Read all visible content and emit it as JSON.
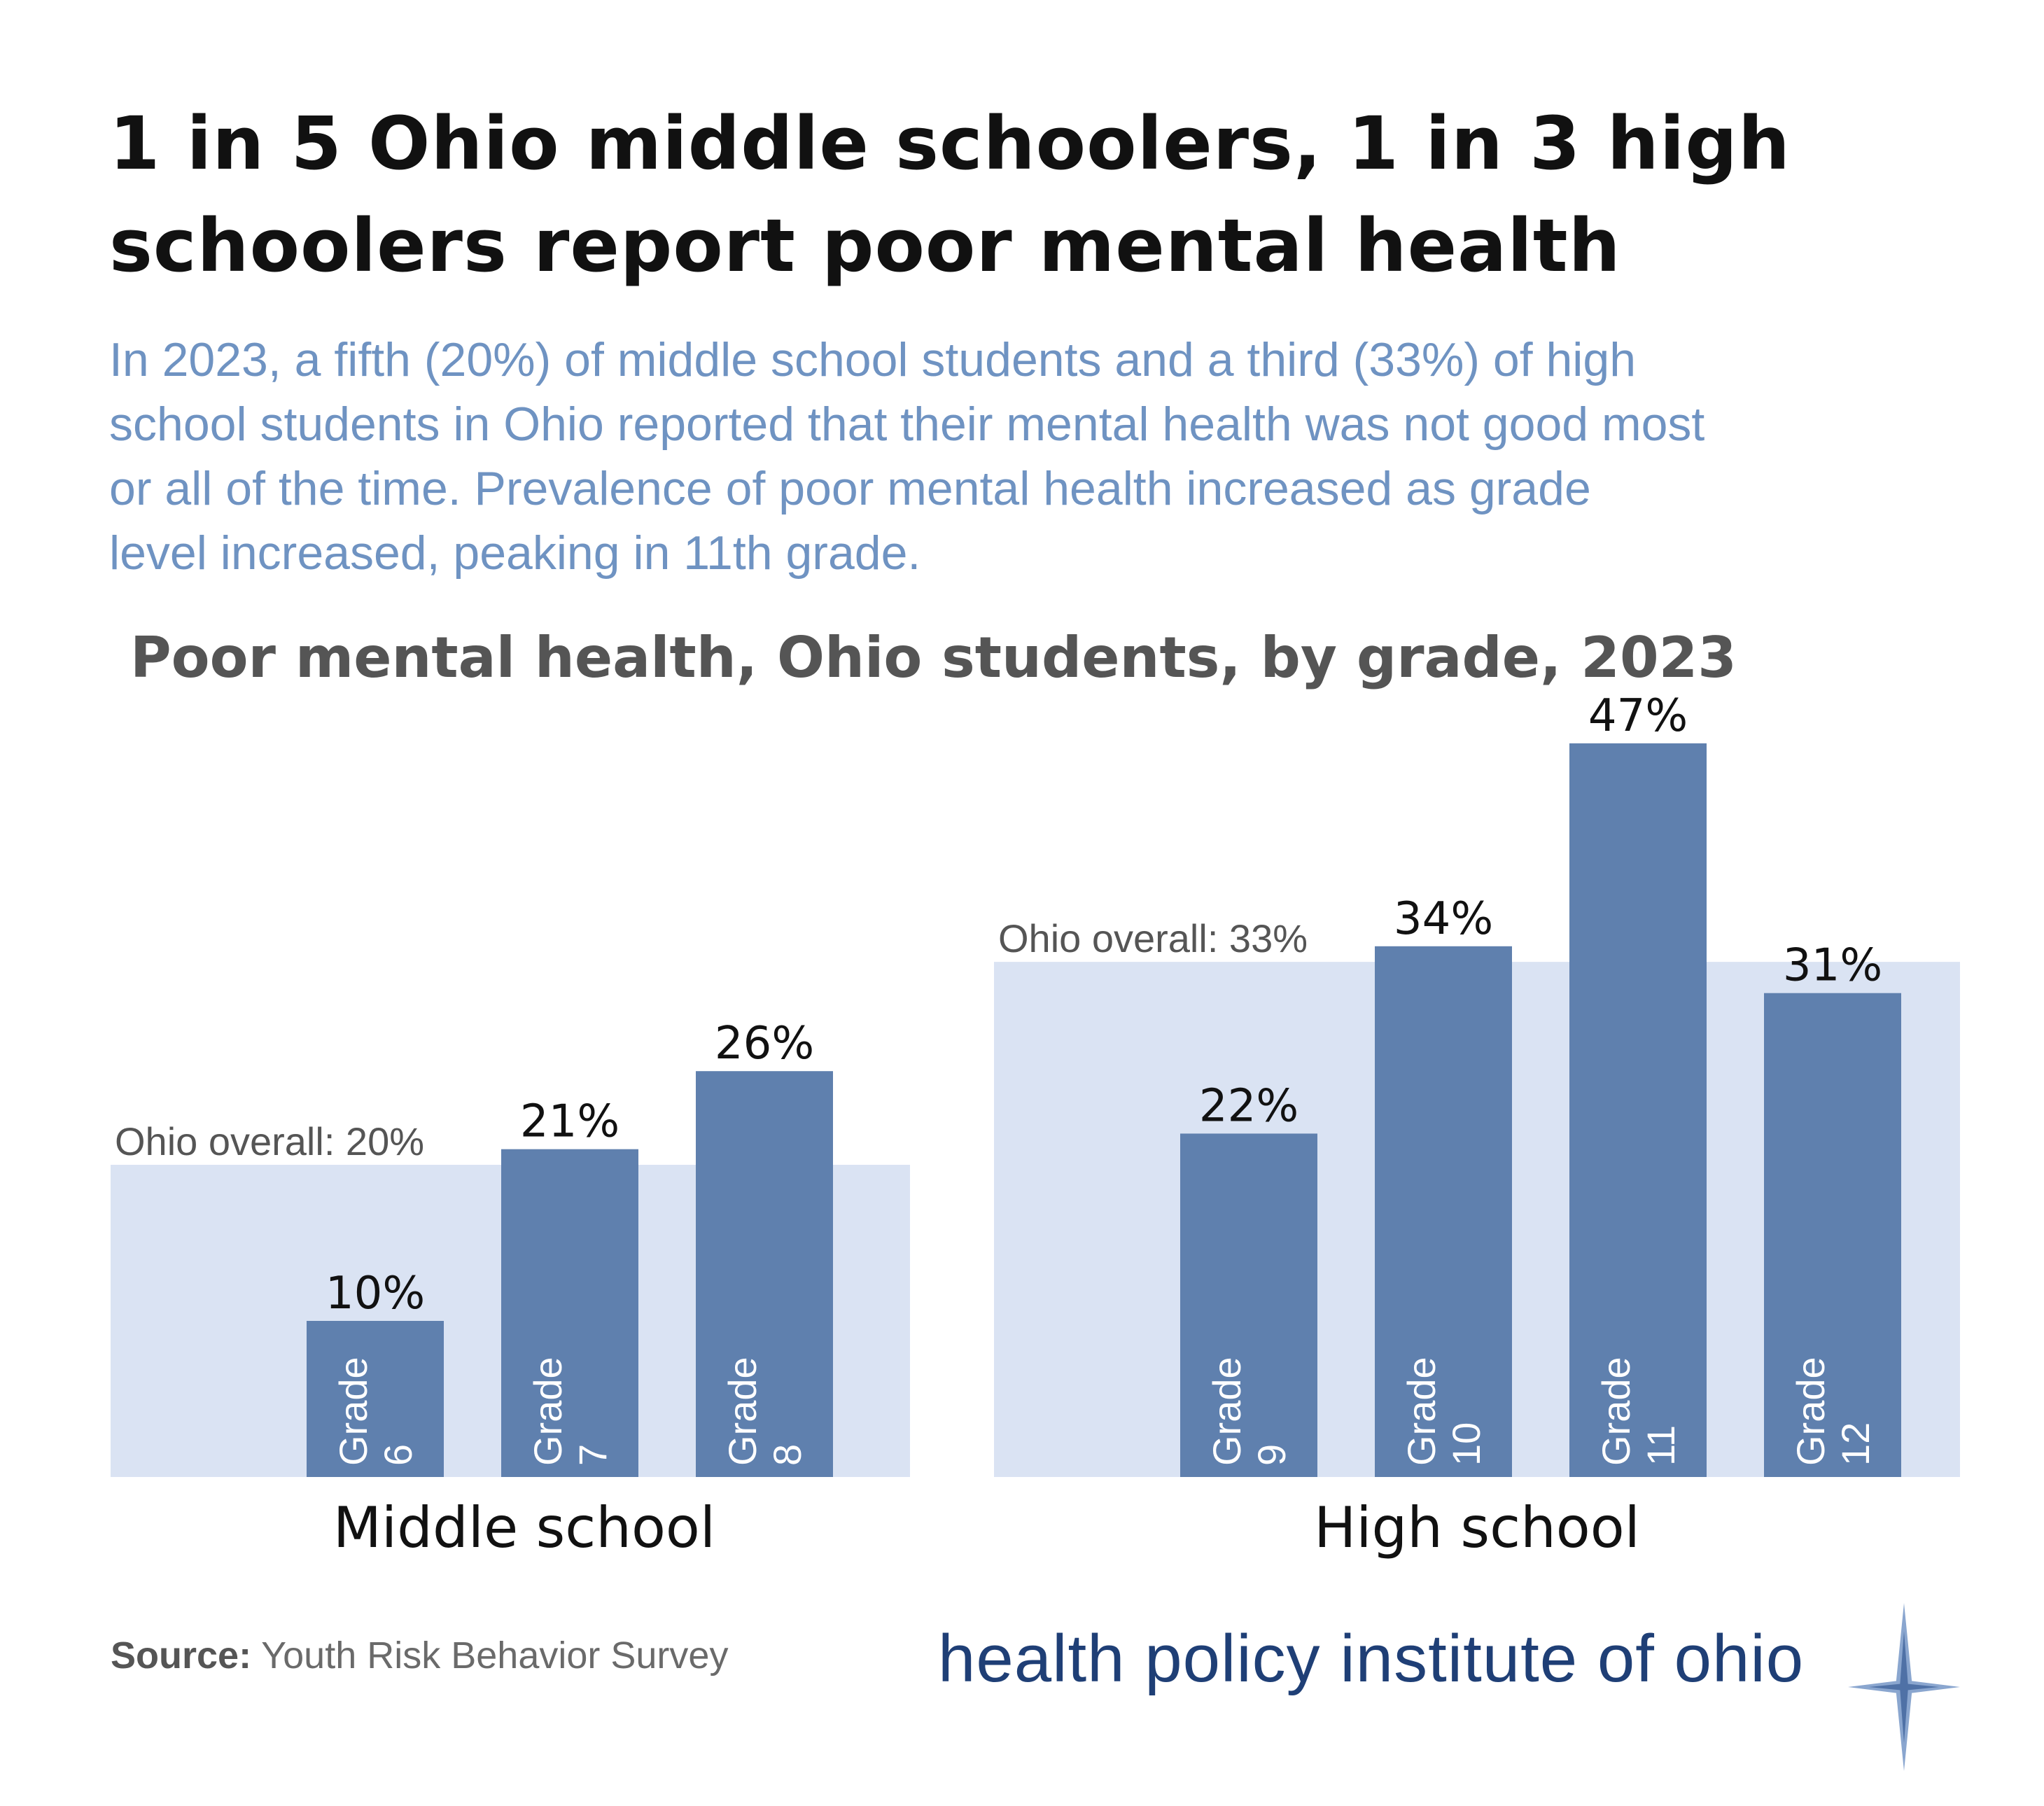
{
  "headline": {
    "line1": "1 in 5 Ohio middle schoolers, 1 in 3 high",
    "line2": "schoolers report poor mental health"
  },
  "subtitle": {
    "line1": "In 2023, a fifth (20%) of middle school students and a third (33%) of high",
    "line2": "school students in Ohio reported that their mental health was not good most",
    "line3": "or all of the time. Prevalence of poor mental health increased as grade",
    "line4": "level increased, peaking in 11th grade."
  },
  "chart_data": {
    "type": "bar",
    "title": "Poor mental health, Ohio students, by grade, 2023",
    "ylim": [
      0,
      50
    ],
    "value_suffix": "%",
    "grid": false,
    "colors": {
      "bar": "#5f80ae",
      "overall_band": "#dae3f3",
      "bar_label_text": "#ffffff",
      "value_text": "#111111",
      "overall_text": "#555555"
    },
    "groups": [
      {
        "name": "Middle school",
        "overall_label": "Ohio overall: 20%",
        "overall_value": 20,
        "bars": [
          {
            "line1": "Grade",
            "line2": "6",
            "value": 10,
            "value_label": "10%"
          },
          {
            "line1": "Grade",
            "line2": "7",
            "value": 21,
            "value_label": "21%"
          },
          {
            "line1": "Grade",
            "line2": "8",
            "value": 26,
            "value_label": "26%"
          }
        ]
      },
      {
        "name": "High school",
        "overall_label": "Ohio overall: 33%",
        "overall_value": 33,
        "bars": [
          {
            "line1": "Grade",
            "line2": "9",
            "value": 22,
            "value_label": "22%"
          },
          {
            "line1": "Grade",
            "line2": "10",
            "value": 34,
            "value_label": "34%"
          },
          {
            "line1": "Grade",
            "line2": "11",
            "value": 47,
            "value_label": "47%"
          },
          {
            "line1": "Grade",
            "line2": "12",
            "value": 31,
            "value_label": "31%"
          }
        ]
      }
    ]
  },
  "source": {
    "label": "Source:",
    "text": "Youth Risk Behavior Survey"
  },
  "logo": {
    "text": "health policy institute of ohio",
    "icon": "star-compass-icon",
    "color": "#1f3f76"
  }
}
